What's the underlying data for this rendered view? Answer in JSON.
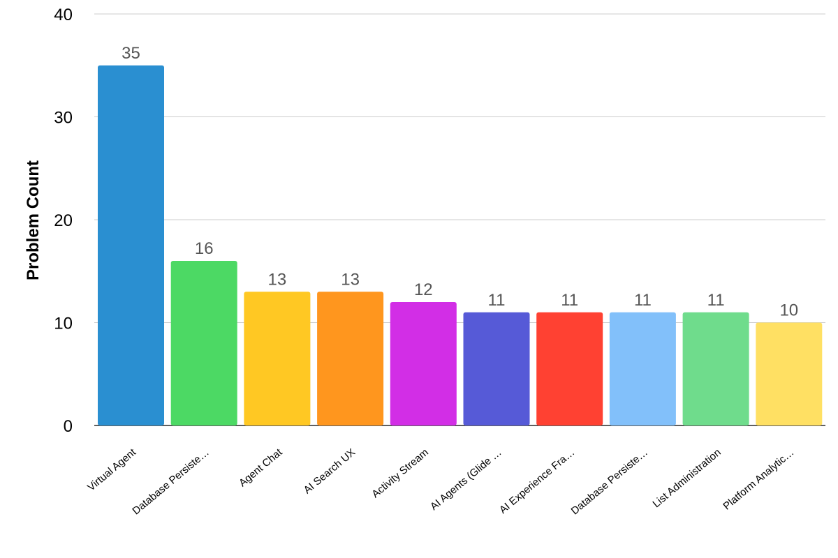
{
  "chart_data": {
    "type": "bar",
    "ylabel": "Problem Count",
    "xlabel": "",
    "ylim": [
      0,
      40
    ],
    "yticks": [
      0,
      10,
      20,
      30,
      40
    ],
    "grid": true,
    "categories": [
      "Virtual Agent",
      "Database Persiste…",
      "Agent Chat",
      "AI Search UX",
      "Activity Stream",
      "AI Agents (Glide …",
      "AI Experience Fra…",
      "Database Persiste…",
      "List Administration",
      "Platform Analytic…"
    ],
    "values": [
      35,
      16,
      13,
      13,
      12,
      11,
      11,
      11,
      11,
      10
    ],
    "colors": [
      "#2a8fd1",
      "#4cd964",
      "#ffc823",
      "#ff961e",
      "#d22ee6",
      "#565ad7",
      "#ff4132",
      "#82c0fa",
      "#6fdc8c",
      "#ffe063"
    ]
  }
}
